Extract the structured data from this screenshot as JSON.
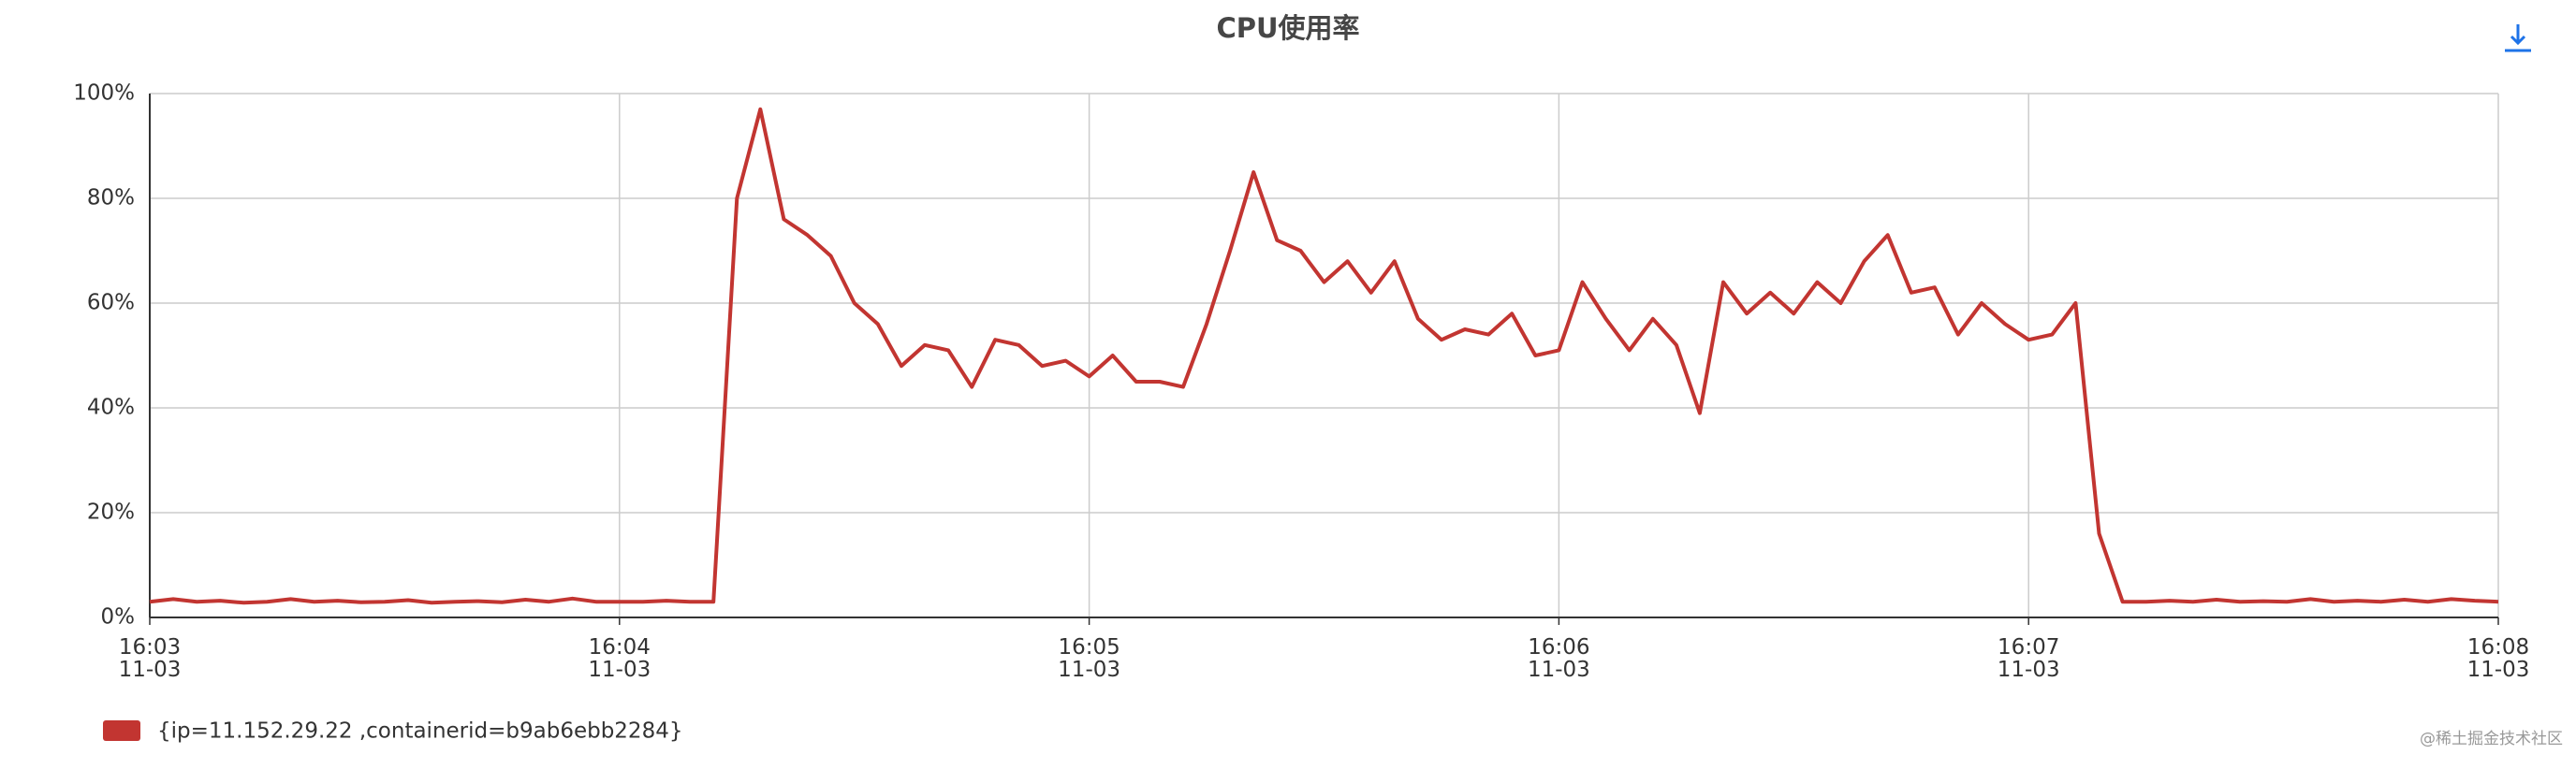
{
  "chart_data": {
    "type": "line",
    "title": "CPU使用率",
    "xlim": [
      0,
      100
    ],
    "xticks": [
      {
        "value": 0,
        "label": "16:03\n11-03"
      },
      {
        "value": 20,
        "label": "16:04\n11-03"
      },
      {
        "value": 40,
        "label": "16:05\n11-03"
      },
      {
        "value": 60,
        "label": "16:06\n11-03"
      },
      {
        "value": 80,
        "label": "16:07\n11-03"
      },
      {
        "value": 100,
        "label": "16:08\n11-03"
      }
    ],
    "ylim": [
      0,
      100
    ],
    "yticks": [
      {
        "value": 0,
        "label": "0%"
      },
      {
        "value": 20,
        "label": "20%"
      },
      {
        "value": 40,
        "label": "40%"
      },
      {
        "value": 60,
        "label": "60%"
      },
      {
        "value": 80,
        "label": "80%"
      },
      {
        "value": 100,
        "label": "100%"
      }
    ],
    "grid": true,
    "series": [
      {
        "name": "{ip=11.152.29.22 ,containerid=b9ab6ebb2284}",
        "color": "#c23531",
        "values": [
          3,
          3.5,
          3,
          3.2,
          2.8,
          3,
          3.5,
          3,
          3.2,
          2.9,
          3,
          3.3,
          2.8,
          3,
          3.1,
          2.9,
          3.4,
          3,
          3.6,
          3,
          3,
          3,
          3.2,
          3,
          3,
          80,
          97,
          76,
          73,
          69,
          60,
          56,
          48,
          52,
          51,
          44,
          53,
          52,
          48,
          49,
          46,
          50,
          45,
          45,
          44,
          56,
          70,
          85,
          72,
          70,
          64,
          68,
          62,
          68,
          57,
          53,
          55,
          54,
          58,
          50,
          51,
          64,
          57,
          51,
          57,
          52,
          39,
          64,
          58,
          62,
          58,
          64,
          60,
          68,
          73,
          62,
          63,
          54,
          60,
          56,
          53,
          54,
          60,
          16,
          3,
          3,
          3.2,
          3,
          3.4,
          3,
          3.1,
          3,
          3.5,
          3,
          3.2,
          3,
          3.4,
          3,
          3.5,
          3.2,
          3
        ]
      }
    ]
  },
  "watermark": "@稀土掘金技术社区"
}
